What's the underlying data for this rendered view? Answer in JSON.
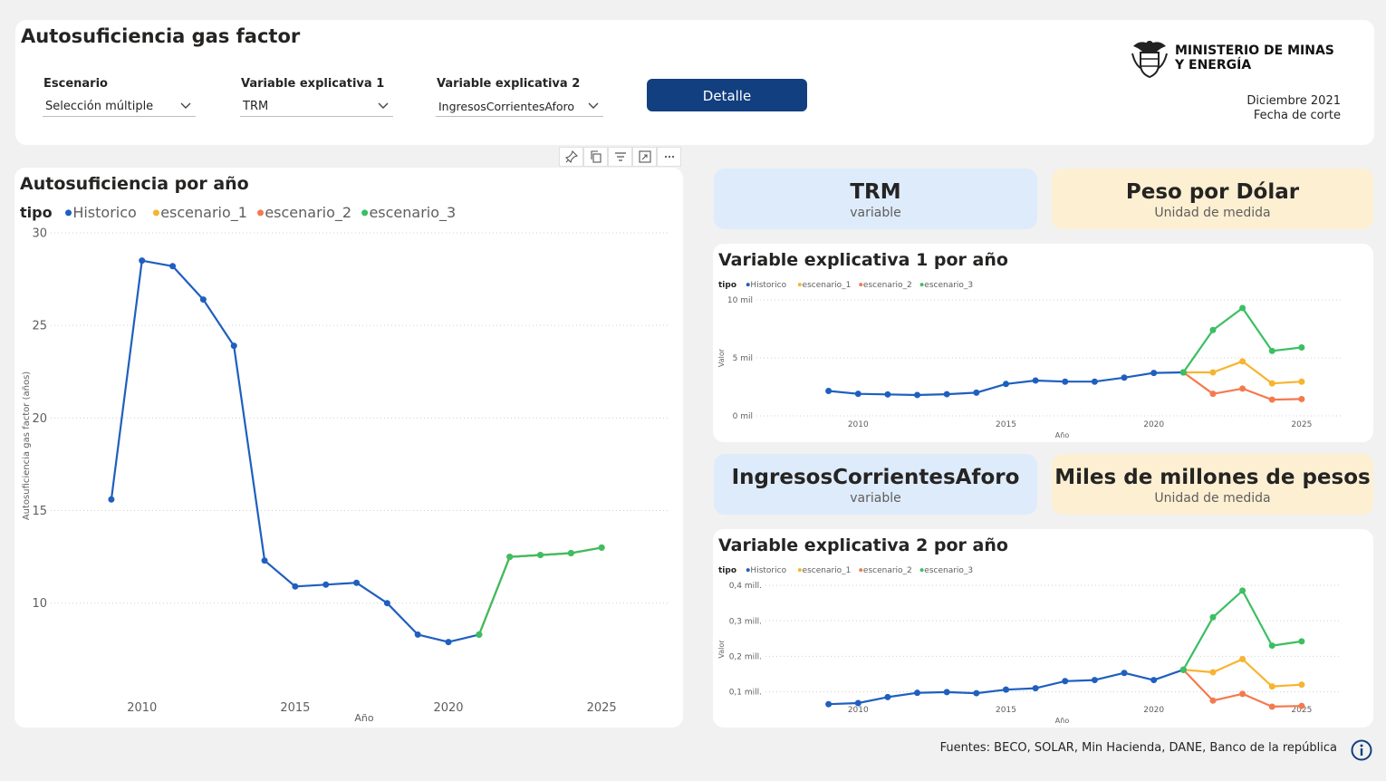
{
  "header": {
    "title": "Autosuficiencia gas factor",
    "filters": [
      {
        "label": "Escenario",
        "value": "Selección múltiple"
      },
      {
        "label": "Variable explicativa 1",
        "value": "TRM"
      },
      {
        "label": "Variable explicativa 2",
        "value": "IngresosCorrientesAforo"
      }
    ],
    "detail_button": "Detalle",
    "ministry_line1": "MINISTERIO DE MINAS",
    "ministry_line2": "Y ENERGÍA",
    "cut_date": "Diciembre 2021",
    "cut_date_label": "Fecha de corte"
  },
  "cards": {
    "var1_name": "TRM",
    "var1_caption": "variable",
    "var1_unit": "Peso por Dólar",
    "var1_unit_caption": "Unidad de medida",
    "var2_name": "IngresosCorrientesAforo",
    "var2_caption": "variable",
    "var2_unit": "Miles de millones de pesos",
    "var2_unit_caption": "Unidad de medida"
  },
  "footer": {
    "sources": "Fuentes:  BECO, SOLAR, Min Hacienda, DANE, Banco de la república"
  },
  "colors": {
    "Historico": "#1f5fbf",
    "escenario_1": "#f8b42f",
    "escenario_2": "#f47a4e",
    "escenario_3": "#3bbf63",
    "button": "#123f7f",
    "card_blue": "#deebfb",
    "card_orange": "#fdefd2"
  },
  "icons": [
    "pin-icon",
    "copy-icon",
    "filter-icon",
    "focus-mode-icon",
    "more-options-icon",
    "dropdown-chevron-icon",
    "info-icon",
    "colombia-coat-of-arms-logo"
  ],
  "chart_data": [
    {
      "type": "line",
      "title": "Autosuficiencia por año",
      "legend_title": "tipo",
      "legend_position": "top-left",
      "xlabel": "Año",
      "ylabel": "Autosuficiencia gas factor (años)",
      "xlim": [
        2008.5,
        2026
      ],
      "ylim": [
        7,
        30
      ],
      "yticks": [
        10,
        15,
        20,
        25,
        30
      ],
      "xticks": [
        2010,
        2015,
        2020,
        2025
      ],
      "grid": true,
      "series": [
        {
          "name": "Historico",
          "x": [
            2009,
            2010,
            2011,
            2012,
            2013,
            2014,
            2015,
            2016,
            2017,
            2018,
            2019,
            2020,
            2021
          ],
          "y": [
            15.6,
            28.5,
            28.2,
            26.4,
            23.9,
            12.3,
            10.9,
            11.0,
            11.1,
            10.0,
            8.3,
            7.9,
            8.3
          ]
        },
        {
          "name": "escenario_1",
          "x": [
            2021,
            2022,
            2023,
            2024,
            2025
          ],
          "y": [
            8.3,
            12.5,
            12.6,
            12.7,
            13.0
          ]
        },
        {
          "name": "escenario_2",
          "x": [
            2021,
            2022,
            2023,
            2024,
            2025
          ],
          "y": [
            8.3,
            12.5,
            12.6,
            12.7,
            13.0
          ]
        },
        {
          "name": "escenario_3",
          "x": [
            2021,
            2022,
            2023,
            2024,
            2025
          ],
          "y": [
            8.3,
            12.5,
            12.6,
            12.7,
            13.0
          ]
        }
      ]
    },
    {
      "type": "line",
      "title": "Variable explicativa 1 por año",
      "legend_title": "tipo",
      "legend_position": "top-left",
      "xlabel": "Año",
      "ylabel": "Valor",
      "xlim": [
        2008,
        2025.8
      ],
      "ylim": [
        0,
        10000
      ],
      "yticks": [
        0,
        5000,
        10000
      ],
      "ytick_labels": [
        "0 mil",
        "5 mil",
        "10 mil"
      ],
      "xticks": [
        2010,
        2015,
        2020,
        2025
      ],
      "grid": true,
      "series": [
        {
          "name": "Historico",
          "x": [
            2009,
            2010,
            2011,
            2012,
            2013,
            2014,
            2015,
            2016,
            2017,
            2018,
            2019,
            2020,
            2021
          ],
          "y": [
            2150,
            1900,
            1850,
            1800,
            1870,
            2000,
            2750,
            3050,
            2950,
            2950,
            3300,
            3700,
            3750
          ]
        },
        {
          "name": "escenario_1",
          "x": [
            2021,
            2022,
            2023,
            2024,
            2025
          ],
          "y": [
            3750,
            3750,
            4700,
            2800,
            2950
          ]
        },
        {
          "name": "escenario_2",
          "x": [
            2021,
            2022,
            2023,
            2024,
            2025
          ],
          "y": [
            3750,
            1900,
            2350,
            1400,
            1450
          ]
        },
        {
          "name": "escenario_3",
          "x": [
            2021,
            2022,
            2023,
            2024,
            2025
          ],
          "y": [
            3750,
            7400,
            9300,
            5600,
            5900
          ]
        }
      ]
    },
    {
      "type": "line",
      "title": "Variable explicativa 2 por año",
      "legend_title": "tipo",
      "legend_position": "top-left",
      "xlabel": "Año",
      "ylabel": "Valor",
      "xlim": [
        2008,
        2025.8
      ],
      "ylim": [
        0.04,
        0.4
      ],
      "yticks": [
        0.1,
        0.2,
        0.3,
        0.4
      ],
      "ytick_labels": [
        "0,1 mill.",
        "0,2 mill.",
        "0,3 mill.",
        "0,4 mill."
      ],
      "xticks": [
        2010,
        2015,
        2020,
        2025
      ],
      "grid": true,
      "series": [
        {
          "name": "Historico",
          "x": [
            2009,
            2010,
            2011,
            2012,
            2013,
            2014,
            2015,
            2016,
            2017,
            2018,
            2019,
            2020,
            2021
          ],
          "y": [
            0.065,
            0.068,
            0.085,
            0.097,
            0.099,
            0.096,
            0.106,
            0.11,
            0.13,
            0.133,
            0.153,
            0.133,
            0.162
          ]
        },
        {
          "name": "escenario_1",
          "x": [
            2021,
            2022,
            2023,
            2024,
            2025
          ],
          "y": [
            0.162,
            0.155,
            0.192,
            0.115,
            0.12
          ]
        },
        {
          "name": "escenario_2",
          "x": [
            2021,
            2022,
            2023,
            2024,
            2025
          ],
          "y": [
            0.162,
            0.075,
            0.094,
            0.058,
            0.06
          ]
        },
        {
          "name": "escenario_3",
          "x": [
            2021,
            2022,
            2023,
            2024,
            2025
          ],
          "y": [
            0.162,
            0.31,
            0.385,
            0.23,
            0.242
          ]
        }
      ]
    }
  ]
}
